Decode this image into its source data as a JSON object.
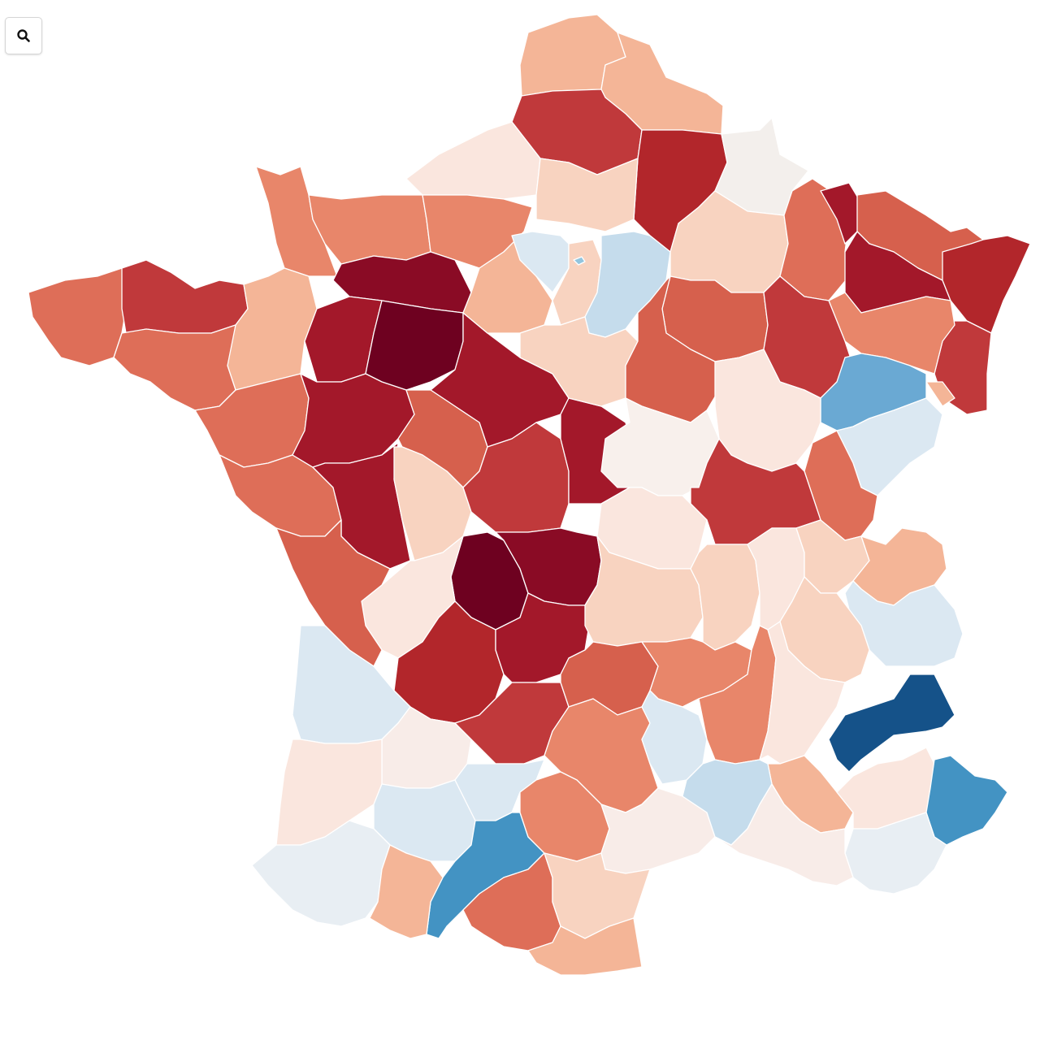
{
  "toolbar": {
    "search_icon": "magnifier-icon"
  },
  "color_scale": {
    "type": "diverging",
    "negative": [
      "#155289",
      "#2166ac",
      "#4393c3",
      "#6aa9d3",
      "#92c5de",
      "#c5dcec",
      "#dbe8f2",
      "#e8eef3"
    ],
    "neutral": "#f3efec",
    "positive": [
      "#fae6de",
      "#f8d3c0",
      "#f4b597",
      "#e8866a",
      "#de6e58",
      "#d6604d",
      "#c0393b",
      "#b2262b",
      "#a3182a",
      "#8a0b25",
      "#6e0120"
    ]
  }
}
